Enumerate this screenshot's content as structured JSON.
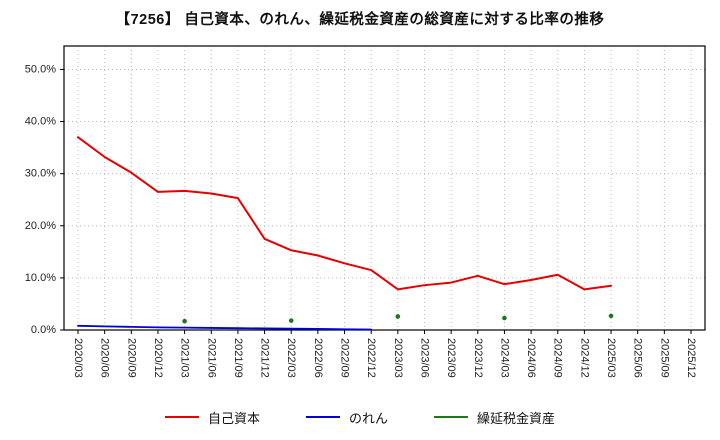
{
  "title": "【7256】 自己資本、のれん、繰延税金資産の総資産に対する比率の推移",
  "chart_data": {
    "type": "line",
    "title": "【7256】 自己資本、のれん、繰延税金資産の総資産に対する比率の推移",
    "xlabel": "",
    "ylabel": "",
    "ylim": [
      0,
      54.5
    ],
    "yticks": [
      0,
      10,
      20,
      30,
      40,
      50
    ],
    "ytick_labels": [
      "0.0%",
      "10.0%",
      "20.0%",
      "30.0%",
      "40.0%",
      "50.0%"
    ],
    "grid": "dotted",
    "legend_position": "bottom",
    "categories": [
      "2020/03",
      "2020/06",
      "2020/09",
      "2020/12",
      "2021/03",
      "2021/06",
      "2021/09",
      "2021/12",
      "2022/03",
      "2022/06",
      "2022/09",
      "2022/12",
      "2023/03",
      "2023/06",
      "2023/09",
      "2023/12",
      "2024/03",
      "2024/06",
      "2024/09",
      "2024/12",
      "2025/03",
      "2025/06",
      "2025/09",
      "2025/12"
    ],
    "series": [
      {
        "name": "自己資本",
        "color": "#e60000",
        "style": "line",
        "values": [
          37.0,
          33.2,
          30.2,
          26.5,
          26.7,
          26.2,
          25.3,
          17.5,
          15.3,
          14.3,
          12.8,
          11.5,
          7.8,
          8.6,
          9.1,
          10.4,
          8.8,
          9.6,
          10.6,
          7.8,
          8.5,
          null,
          null,
          null
        ]
      },
      {
        "name": "のれん",
        "color": "#0000dd",
        "style": "line",
        "values": [
          0.8,
          0.7,
          0.6,
          0.5,
          0.45,
          0.4,
          0.35,
          0.3,
          0.25,
          0.2,
          0.15,
          0.1,
          null,
          null,
          null,
          null,
          null,
          null,
          null,
          null,
          null,
          null,
          null,
          null
        ]
      },
      {
        "name": "繰延税金資産",
        "color": "#1a7a1a",
        "style": "dots",
        "values": [
          null,
          null,
          null,
          null,
          1.7,
          null,
          null,
          null,
          1.8,
          null,
          null,
          null,
          2.6,
          null,
          null,
          null,
          2.3,
          null,
          null,
          null,
          2.7,
          null,
          null,
          null
        ]
      }
    ],
    "colors": {
      "grid": "#bbbbbb",
      "axis_border": "#000000",
      "tick_text": "#222222"
    }
  }
}
